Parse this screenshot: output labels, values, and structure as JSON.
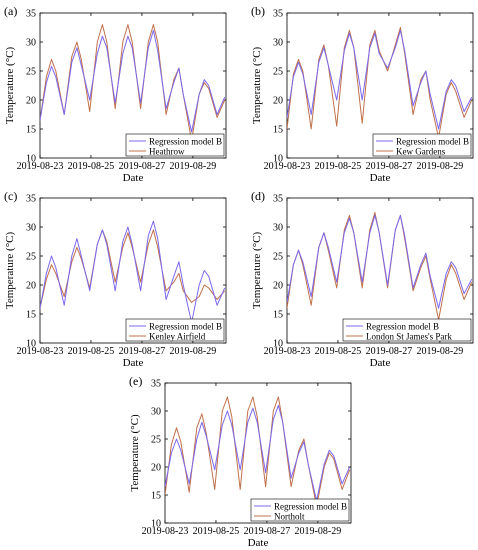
{
  "figure": {
    "panels": [
      {
        "label": "(a)",
        "station": "Heathrow"
      },
      {
        "label": "(b)",
        "station": "Kew Gardens"
      },
      {
        "label": "(c)",
        "station": "Kenley Airfield"
      },
      {
        "label": "(d)",
        "station": "London St James's Park"
      },
      {
        "label": "(e)",
        "station": "Northolt"
      }
    ]
  },
  "colors": {
    "model": "#7b68ee",
    "observed": "#c0704a"
  },
  "chart_data": [
    {
      "type": "line",
      "label": "(a)",
      "xlabel": "Date",
      "ylabel": "Temperature (°C)",
      "xlim": [
        0,
        7.3
      ],
      "ylim": [
        10,
        35
      ],
      "xticks": [
        0,
        2,
        4,
        6
      ],
      "xtick_labels": [
        "2019-08-23",
        "2019-08-25",
        "2019-08-27",
        "2019-08-29"
      ],
      "yticks": [
        10,
        15,
        20,
        25,
        30,
        35
      ],
      "ytick_labels": [
        "10",
        "15",
        "20",
        "25",
        "30",
        "35"
      ],
      "legend_position": "bottom-right",
      "series": [
        {
          "name": "Regression model B",
          "color": "#7b68ee",
          "x": [
            0,
            0.25,
            0.45,
            0.62,
            0.95,
            1.25,
            1.45,
            1.62,
            1.95,
            2.25,
            2.45,
            2.62,
            2.95,
            3.25,
            3.45,
            3.62,
            3.95,
            4.25,
            4.45,
            4.62,
            4.95,
            5.25,
            5.45,
            5.62,
            5.95,
            6.25,
            6.45,
            6.62,
            6.95,
            7.25
          ],
          "y": [
            16.5,
            23,
            25.8,
            24,
            17.5,
            26.5,
            29,
            26,
            20,
            28,
            31,
            29,
            19.5,
            28,
            31,
            29,
            19.5,
            29,
            32,
            28.5,
            18.5,
            23,
            25.5,
            21,
            14.5,
            21,
            23.5,
            22.5,
            17.5,
            20.5
          ]
        },
        {
          "name": "Heathrow",
          "color": "#c0704a",
          "x": [
            0,
            0.25,
            0.45,
            0.62,
            0.95,
            1.25,
            1.45,
            1.62,
            1.95,
            2.25,
            2.45,
            2.62,
            2.95,
            3.25,
            3.45,
            3.62,
            3.95,
            4.25,
            4.45,
            4.62,
            4.95,
            5.25,
            5.45,
            5.62,
            5.95,
            6.25,
            6.45,
            6.62,
            6.95,
            7.25
          ],
          "y": [
            16.5,
            24,
            27,
            25,
            17.5,
            27.5,
            30,
            27,
            18,
            30,
            33,
            30,
            18.5,
            30,
            33,
            30,
            18.5,
            30,
            33,
            30,
            17.5,
            23.5,
            25.5,
            21,
            13,
            21,
            23,
            22,
            17,
            20
          ]
        }
      ]
    },
    {
      "type": "line",
      "label": "(b)",
      "xlabel": "Date",
      "ylabel": "Temperature (°C)",
      "xlim": [
        0,
        7.3
      ],
      "ylim": [
        10,
        35
      ],
      "xticks": [
        0,
        2,
        4,
        6
      ],
      "xtick_labels": [
        "2019-08-23",
        "2019-08-25",
        "2019-08-27",
        "2019-08-29"
      ],
      "yticks": [
        10,
        15,
        20,
        25,
        30,
        35
      ],
      "ytick_labels": [
        "10",
        "15",
        "20",
        "25",
        "30",
        "35"
      ],
      "legend_position": "bottom-right",
      "series": [
        {
          "name": "Regression model B",
          "color": "#7b68ee",
          "x": [
            0,
            0.25,
            0.45,
            0.62,
            0.95,
            1.25,
            1.45,
            1.62,
            1.95,
            2.25,
            2.45,
            2.62,
            2.95,
            3.25,
            3.45,
            3.62,
            3.95,
            4.25,
            4.45,
            4.62,
            4.95,
            5.25,
            5.45,
            5.62,
            5.95,
            6.25,
            6.45,
            6.62,
            6.95,
            7.25
          ],
          "y": [
            17,
            24,
            26.5,
            24.5,
            17.5,
            26.5,
            29,
            26,
            20,
            28.5,
            31.5,
            29,
            20,
            29,
            31.5,
            28,
            25.5,
            29,
            32,
            28.5,
            19,
            23,
            25,
            21,
            15,
            21.5,
            23.5,
            22.5,
            18,
            20.5
          ]
        },
        {
          "name": "Kew Gardens",
          "color": "#c0704a",
          "x": [
            0,
            0.25,
            0.45,
            0.62,
            0.95,
            1.25,
            1.45,
            1.62,
            1.95,
            2.25,
            2.45,
            2.62,
            2.95,
            3.25,
            3.45,
            3.62,
            3.95,
            4.25,
            4.45,
            4.62,
            4.95,
            5.25,
            5.45,
            5.62,
            5.95,
            6.25,
            6.45,
            6.62,
            6.95,
            7.25
          ],
          "y": [
            15,
            24.5,
            27,
            25,
            15,
            27,
            29.5,
            26,
            15.5,
            29,
            32,
            29,
            16,
            29.5,
            32,
            28.5,
            25,
            29.5,
            32.5,
            28,
            17.5,
            23.5,
            25,
            20,
            13.5,
            21,
            23,
            21.5,
            17,
            20
          ]
        }
      ]
    },
    {
      "type": "line",
      "label": "(c)",
      "xlabel": "Date",
      "ylabel": "Temperature (°C)",
      "xlim": [
        0,
        7.3
      ],
      "ylim": [
        10,
        35
      ],
      "xticks": [
        0,
        2,
        4,
        6
      ],
      "xtick_labels": [
        "2019-08-23",
        "2019-08-25",
        "2019-08-27",
        "2019-08-29"
      ],
      "yticks": [
        10,
        15,
        20,
        25,
        30,
        35
      ],
      "ytick_labels": [
        "10",
        "15",
        "20",
        "25",
        "30",
        "35"
      ],
      "legend_position": "bottom-right",
      "series": [
        {
          "name": "Regression model B",
          "color": "#7b68ee",
          "x": [
            0,
            0.25,
            0.45,
            0.62,
            0.95,
            1.25,
            1.45,
            1.62,
            1.95,
            2.25,
            2.45,
            2.62,
            2.95,
            3.25,
            3.45,
            3.62,
            3.95,
            4.25,
            4.45,
            4.62,
            4.95,
            5.25,
            5.45,
            5.62,
            5.95,
            6.25,
            6.45,
            6.62,
            6.95,
            7.25
          ],
          "y": [
            16,
            22,
            25,
            23,
            16.5,
            25,
            28,
            25,
            19,
            27,
            29.5,
            27,
            19,
            27.5,
            30,
            27,
            19,
            28.5,
            31,
            28,
            17.5,
            21.5,
            24,
            20,
            13.5,
            20,
            22.5,
            21.5,
            16.5,
            19.5
          ]
        },
        {
          "name": "Kenley Airfield",
          "color": "#c0704a",
          "x": [
            0,
            0.25,
            0.45,
            0.62,
            0.95,
            1.25,
            1.45,
            1.62,
            1.95,
            2.25,
            2.45,
            2.62,
            2.95,
            3.25,
            3.45,
            3.62,
            3.95,
            4.25,
            4.45,
            4.62,
            4.95,
            5.25,
            5.45,
            5.62,
            5.95,
            6.25,
            6.45,
            6.62,
            6.95,
            7.25
          ],
          "y": [
            16,
            21,
            23.5,
            22,
            18,
            24,
            26.5,
            24.5,
            19.5,
            27,
            29.5,
            27.5,
            20.5,
            26.5,
            29,
            26.5,
            20.5,
            27,
            29.5,
            26.5,
            19,
            20.5,
            22,
            19,
            17,
            18,
            20,
            19.5,
            17.5,
            19
          ]
        }
      ]
    },
    {
      "type": "line",
      "label": "(d)",
      "xlabel": "Date",
      "ylabel": "Temperature (°C)",
      "xlim": [
        0,
        7.3
      ],
      "ylim": [
        10,
        35
      ],
      "xticks": [
        0,
        2,
        4,
        6
      ],
      "xtick_labels": [
        "2019-08-23",
        "2019-08-25",
        "2019-08-27",
        "2019-08-29"
      ],
      "yticks": [
        10,
        15,
        20,
        25,
        30,
        35
      ],
      "ytick_labels": [
        "10",
        "15",
        "20",
        "25",
        "30",
        "35"
      ],
      "legend_position": "bottom-right",
      "series": [
        {
          "name": "Regression model B",
          "color": "#7b68ee",
          "x": [
            0,
            0.25,
            0.45,
            0.62,
            0.95,
            1.25,
            1.45,
            1.62,
            1.95,
            2.25,
            2.45,
            2.62,
            2.95,
            3.25,
            3.45,
            3.62,
            3.95,
            4.25,
            4.45,
            4.62,
            4.95,
            5.25,
            5.45,
            5.62,
            5.95,
            6.25,
            6.45,
            6.62,
            6.95,
            7.25
          ],
          "y": [
            17,
            23.5,
            26,
            24,
            18,
            26.5,
            29,
            26.5,
            20.5,
            29,
            31.5,
            29,
            20.5,
            29,
            32,
            29,
            20,
            29.5,
            32,
            28.5,
            19.5,
            23.5,
            25.5,
            21.5,
            16,
            22,
            24,
            23,
            18.5,
            21
          ]
        },
        {
          "name": "London St James's Park",
          "color": "#c0704a",
          "x": [
            0,
            0.25,
            0.45,
            0.62,
            0.95,
            1.25,
            1.45,
            1.62,
            1.95,
            2.25,
            2.45,
            2.62,
            2.95,
            3.25,
            3.45,
            3.62,
            3.95,
            4.25,
            4.45,
            4.62,
            4.95,
            5.25,
            5.45,
            5.62,
            5.95,
            6.25,
            6.45,
            6.62,
            6.95,
            7.25
          ],
          "y": [
            16,
            23.5,
            26,
            23.5,
            16.5,
            26.5,
            29,
            26,
            19.5,
            29.5,
            32,
            29,
            19.5,
            29.5,
            32.5,
            29,
            19.5,
            29.5,
            32,
            28,
            19,
            23,
            25,
            21,
            14,
            21,
            23.5,
            22,
            17.5,
            20.5
          ]
        }
      ]
    },
    {
      "type": "line",
      "label": "(e)",
      "xlabel": "Date",
      "ylabel": "Temperature (°C)",
      "xlim": [
        0,
        7.3
      ],
      "ylim": [
        10,
        35
      ],
      "xticks": [
        0,
        2,
        4,
        6
      ],
      "xtick_labels": [
        "2019-08-23",
        "2019-08-25",
        "2019-08-27",
        "2019-08-29"
      ],
      "yticks": [
        10,
        15,
        20,
        25,
        30,
        35
      ],
      "ytick_labels": [
        "10",
        "15",
        "20",
        "25",
        "30",
        "35"
      ],
      "legend_position": "bottom-right",
      "series": [
        {
          "name": "Regression model B",
          "color": "#7b68ee",
          "x": [
            0,
            0.25,
            0.45,
            0.62,
            0.95,
            1.25,
            1.45,
            1.62,
            1.95,
            2.25,
            2.45,
            2.62,
            2.95,
            3.25,
            3.45,
            3.62,
            3.95,
            4.25,
            4.45,
            4.62,
            4.95,
            5.25,
            5.45,
            5.62,
            5.95,
            6.25,
            6.45,
            6.62,
            6.95,
            7.25
          ],
          "y": [
            16.5,
            22.5,
            25,
            23,
            17,
            25,
            28,
            25.5,
            19.5,
            27.5,
            30,
            27.5,
            19.5,
            28,
            30.5,
            28,
            19,
            28.5,
            31,
            28,
            18,
            22.5,
            24.5,
            20.5,
            14,
            20.5,
            23,
            22,
            17,
            20
          ]
        },
        {
          "name": "Northolt",
          "color": "#c0704a",
          "x": [
            0,
            0.25,
            0.45,
            0.62,
            0.95,
            1.25,
            1.45,
            1.62,
            1.95,
            2.25,
            2.45,
            2.62,
            2.95,
            3.25,
            3.45,
            3.62,
            3.95,
            4.25,
            4.45,
            4.62,
            4.95,
            5.25,
            5.45,
            5.62,
            5.95,
            6.25,
            6.45,
            6.62,
            6.95,
            7.25
          ],
          "y": [
            15,
            24,
            27,
            24.5,
            15.5,
            27,
            29.5,
            26,
            16,
            30,
            32.5,
            29,
            16,
            30,
            32.5,
            29,
            16.5,
            30,
            32.5,
            28,
            16.5,
            23,
            25,
            20.5,
            13,
            20,
            22.5,
            21.5,
            16,
            19.5
          ]
        }
      ]
    }
  ]
}
